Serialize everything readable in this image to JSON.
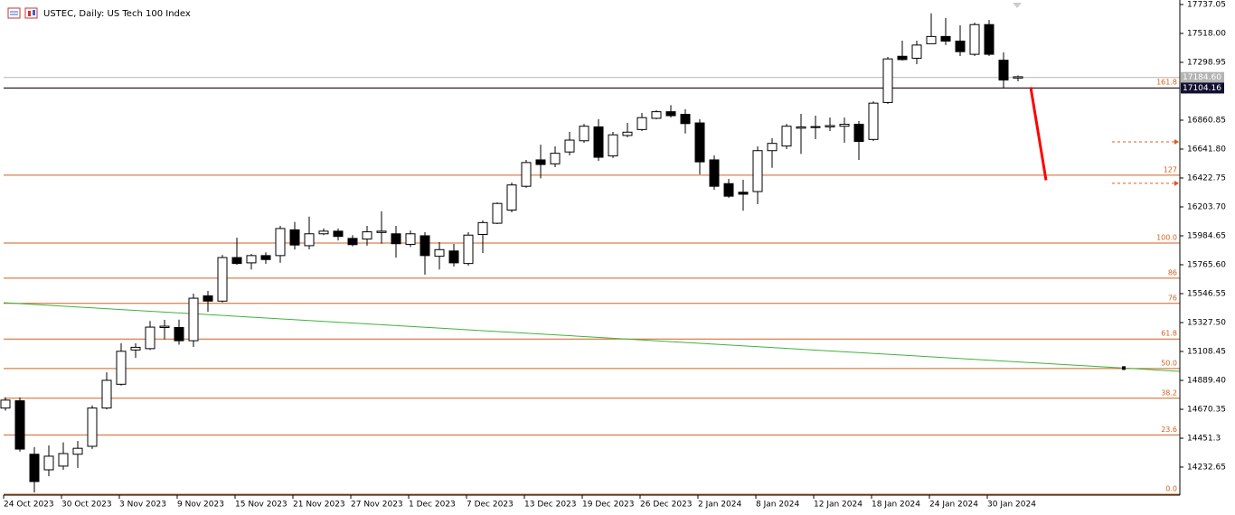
{
  "chart_data": {
    "type": "candlestick",
    "title": "USTEC, Daily:  US Tech 100 Index",
    "categories": [
      "24 Oct 2023",
      null,
      null,
      null,
      "30 Oct 2023",
      null,
      null,
      null,
      "3 Nov 2023",
      null,
      null,
      null,
      "9 Nov 2023",
      null,
      null,
      null,
      "15 Nov 2023",
      null,
      null,
      null,
      "21 Nov 2023",
      null,
      null,
      null,
      "27 Nov 2023",
      null,
      null,
      null,
      "1 Dec 2023",
      null,
      null,
      null,
      "7 Dec 2023",
      null,
      null,
      null,
      "13 Dec 2023",
      null,
      null,
      null,
      "19 Dec 2023",
      null,
      null,
      null,
      "26 Dec 2023",
      null,
      null,
      null,
      "2 Jan 2024",
      null,
      null,
      null,
      "8 Jan 2024",
      null,
      null,
      null,
      "12 Jan 2024",
      null,
      null,
      null,
      "18 Jan 2024",
      null,
      null,
      null,
      "24 Jan 2024",
      null,
      null,
      null,
      "30 Jan 2024",
      null,
      null
    ],
    "open": [
      14680,
      14735,
      14330,
      14212,
      14240,
      14330,
      14390,
      14680,
      14860,
      15120,
      15130,
      15290,
      15290,
      15190,
      15530,
      15490,
      15820,
      15780,
      15835,
      15835,
      16030,
      15910,
      16000,
      16020,
      15965,
      15960,
      16010,
      16000,
      15920,
      15985,
      15830,
      15870,
      15775,
      15995,
      16080,
      16180,
      16360,
      16560,
      16530,
      16620,
      16705,
      16810,
      16590,
      16745,
      16790,
      16875,
      16925,
      16905,
      16840,
      16560,
      16380,
      16315,
      16320,
      16630,
      16665,
      16800,
      16805,
      16810,
      16815,
      16830,
      16715,
      16995,
      17345,
      17330,
      17440,
      17495,
      17460,
      17360,
      17585,
      17315,
      17180
    ],
    "high": [
      14760,
      14760,
      14384,
      14397,
      14420,
      14430,
      14700,
      14950,
      15170,
      15170,
      15340,
      15348,
      15350,
      15547,
      15567,
      15840,
      15970,
      15847,
      15860,
      16060,
      16090,
      16130,
      16040,
      16040,
      15990,
      16060,
      16170,
      16060,
      16025,
      16012,
      15937,
      15923,
      16012,
      16101,
      16238,
      16389,
      16560,
      16675,
      16662,
      16772,
      16833,
      16868,
      16772,
      16840,
      16916,
      16936,
      16975,
      16943,
      16868,
      16594,
      16416,
      16409,
      16662,
      16724,
      16833,
      16909,
      16895,
      16881,
      16881,
      16854,
      17004,
      17340,
      17463,
      17463,
      17670,
      17635,
      17580,
      17600,
      17620,
      17374,
      17200
    ],
    "low": [
      14660,
      14350,
      14040,
      14163,
      14212,
      14226,
      14370,
      14670,
      14850,
      15060,
      15120,
      15200,
      15160,
      15143,
      15410,
      15480,
      15765,
      15730,
      15772,
      15780,
      15880,
      15882,
      15990,
      15950,
      15905,
      15910,
      15925,
      15820,
      15900,
      15690,
      15730,
      15752,
      15759,
      15855,
      16074,
      16163,
      16348,
      16420,
      16505,
      16594,
      16690,
      16553,
      16574,
      16731,
      16779,
      16868,
      16881,
      16760,
      16450,
      16334,
      16272,
      16175,
      16224,
      16500,
      16642,
      16605,
      16717,
      16779,
      16690,
      16560,
      16703,
      16984,
      17313,
      17285,
      17443,
      17430,
      17347,
      17347,
      17347,
      17107,
      17155
    ],
    "close": [
      14740,
      14369,
      14123,
      14315,
      14335,
      14375,
      14680,
      14890,
      15110,
      15140,
      15293,
      15300,
      15190,
      15512,
      15490,
      15820,
      15775,
      15835,
      15805,
      16040,
      15915,
      16000,
      16020,
      15980,
      15918,
      16015,
      16020,
      15925,
      16000,
      15835,
      15880,
      15780,
      15990,
      16085,
      16230,
      16370,
      16540,
      16525,
      16610,
      16710,
      16815,
      16580,
      16750,
      16770,
      16880,
      16925,
      16895,
      16835,
      16545,
      16360,
      16285,
      16300,
      16630,
      16685,
      16815,
      16810,
      16812,
      16820,
      16830,
      16700,
      16990,
      17325,
      17320,
      17430,
      17495,
      17460,
      17380,
      17585,
      17360,
      17165,
      17190
    ],
    "ylim": [
      14020.2,
      17771.3
    ],
    "yticks": [
      17737.05,
      {
        "value": 17518.0,
        "label": "17518.00"
      },
      17298.95,
      16860.85,
      {
        "value": 16641.8,
        "label": "16641.80"
      },
      16422.75,
      {
        "value": 16203.7,
        "label": "16203.70"
      },
      15984.65,
      {
        "value": 15765.6,
        "label": "15765.60"
      },
      15546.55,
      {
        "value": 15327.5,
        "label": "15327.50"
      },
      15108.45,
      {
        "value": 14889.4,
        "label": "14889.40"
      },
      14670.35,
      14451.3,
      14232.65
    ],
    "fib_levels": [
      {
        "value": 17106,
        "label": "161.8"
      },
      {
        "value": 16444,
        "label": "127"
      },
      {
        "value": 15930,
        "label": "100.0"
      },
      {
        "value": 15664,
        "label": "86"
      },
      {
        "value": 15473,
        "label": "76"
      },
      {
        "value": 15203,
        "label": "61.8"
      },
      {
        "value": 14979,
        "label": "50.0"
      },
      {
        "value": 14754,
        "label": "38.2"
      },
      {
        "value": 14476,
        "label": "23.6"
      },
      {
        "value": 14027,
        "label": "0.0"
      }
    ],
    "fib_color": "#d2601e",
    "price_lines": [
      {
        "value": 17184.6,
        "label": "17184.60",
        "color": "#b4b4b4"
      },
      {
        "value": 17104.16,
        "label": "17104.16",
        "color": "#101030"
      }
    ],
    "trendline": {
      "values": [
        15478,
        14958
      ],
      "color": "#3cb43c"
    },
    "projection": {
      "values": [
        17111,
        16406
      ],
      "color": "#ff0000"
    },
    "targets": {
      "values": [
        16697,
        16383
      ],
      "color": "#e05a1e"
    }
  }
}
